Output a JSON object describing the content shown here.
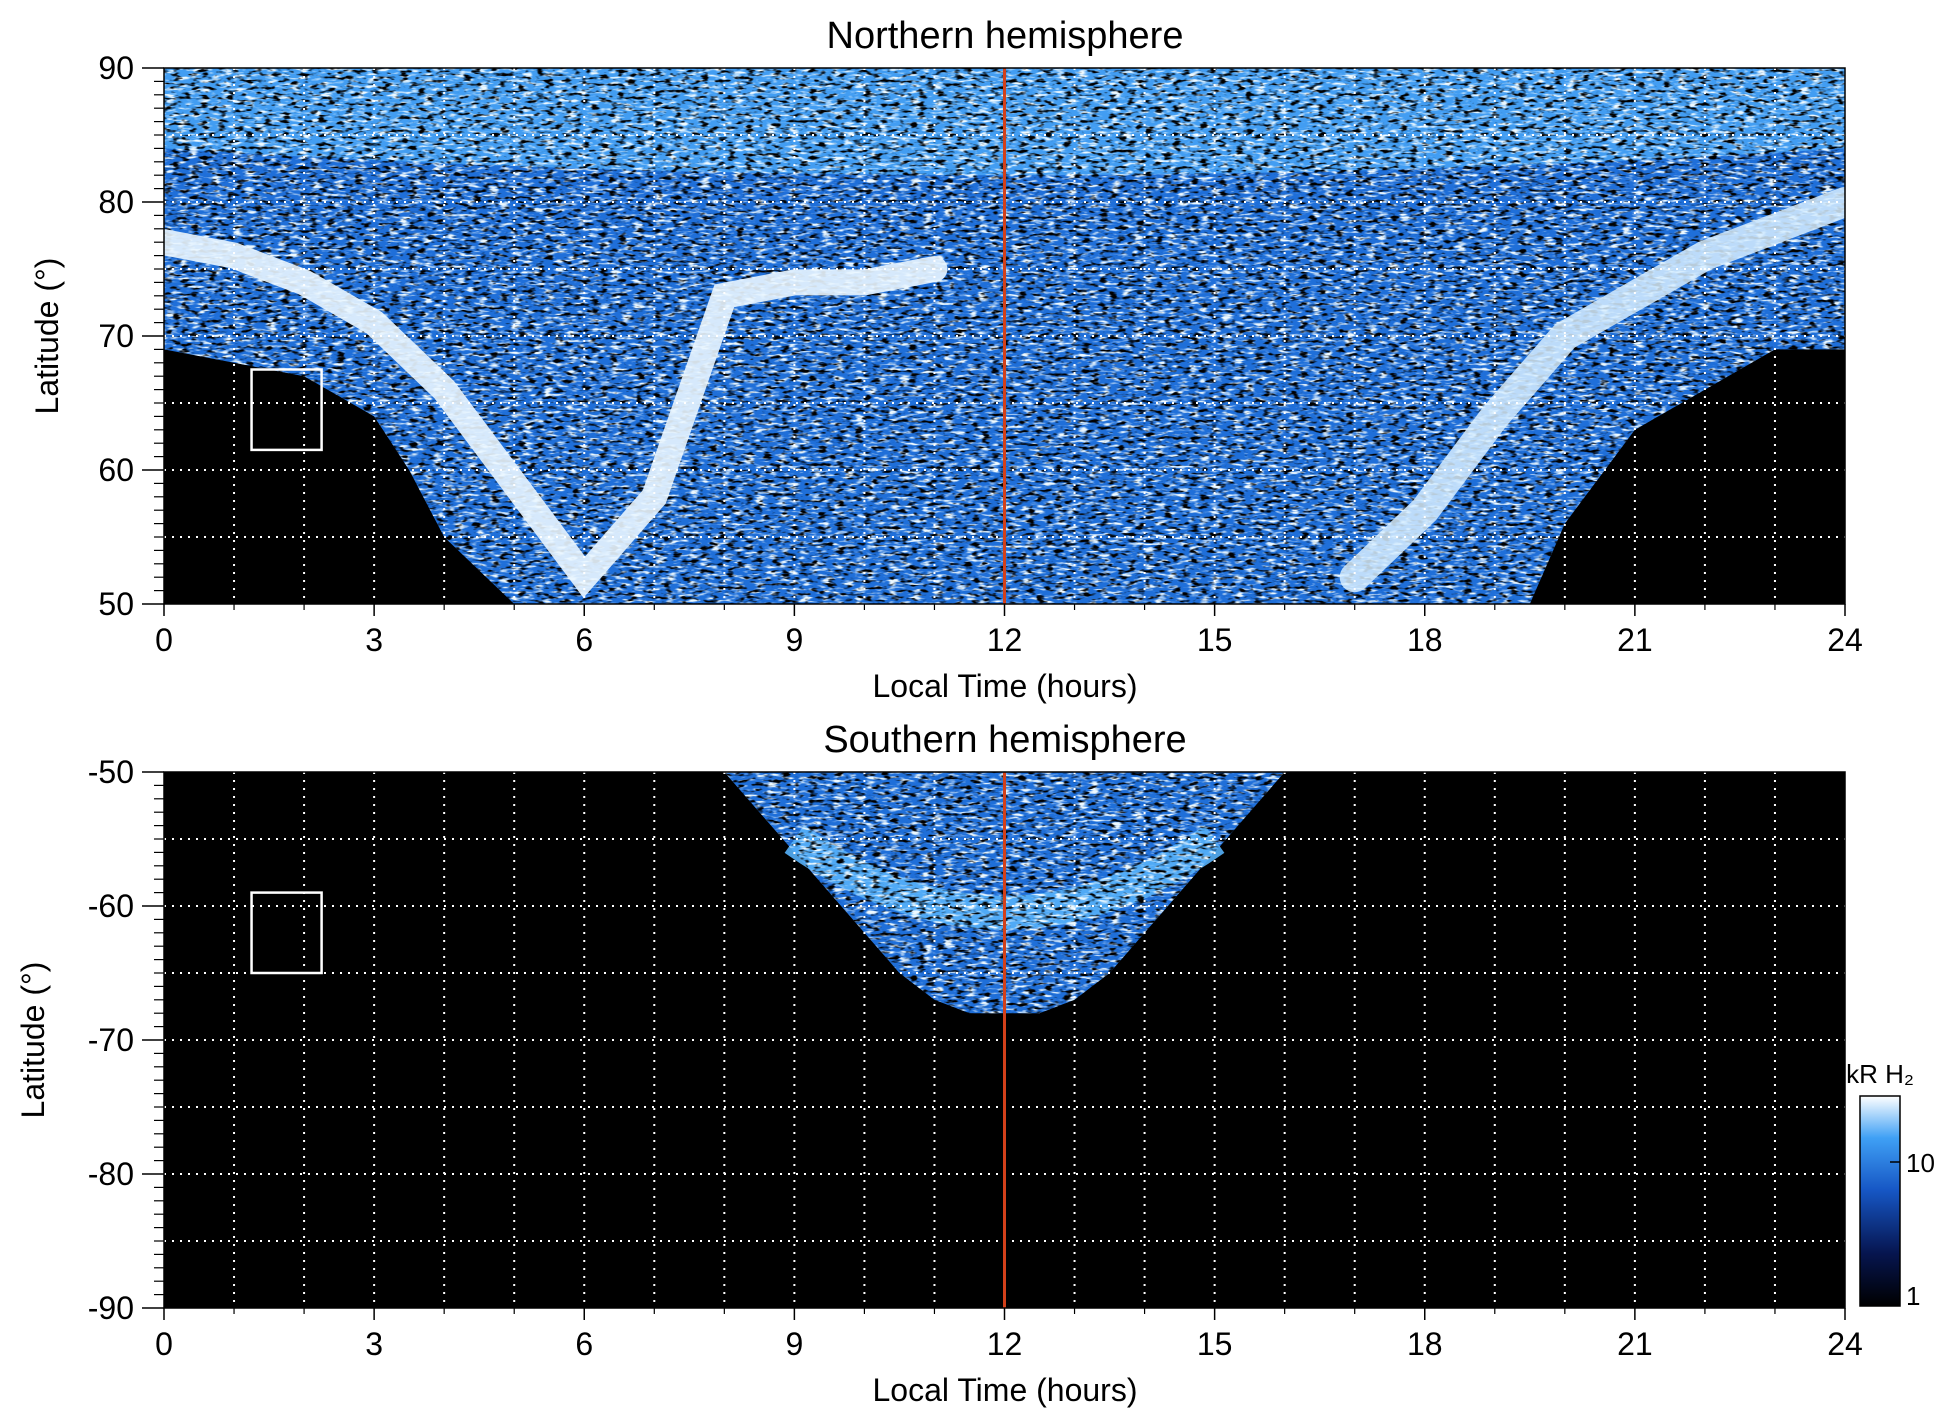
{
  "colors": {
    "background": "#000000",
    "noon_line": "#d2401a",
    "grid": "#ffffff",
    "emission_low": "#0a1a5a",
    "emission_mid": "#2f8cf0",
    "emission_high": "#ffffff"
  },
  "colorbar": {
    "label": "kR H₂",
    "ticks": [
      "10",
      "1"
    ],
    "scale": "log"
  },
  "chart_data": [
    {
      "type": "heatmap",
      "title": "Northern hemisphere",
      "xlabel": "Local Time (hours)",
      "ylabel": "Latitude (°)",
      "xlim": [
        0,
        24
      ],
      "ylim": [
        50,
        90
      ],
      "xticks": [
        "0",
        "3",
        "6",
        "9",
        "12",
        "15",
        "18",
        "21",
        "24"
      ],
      "yticks": [
        "50",
        "60",
        "70",
        "80",
        "90"
      ],
      "grid": true,
      "noon_line_x": 12,
      "coverage_boundary": {
        "local_time": [
          0,
          1,
          2,
          3,
          3.5,
          4,
          5,
          6,
          8,
          10,
          12,
          14,
          16,
          18,
          19,
          19.5,
          20,
          21,
          22,
          23,
          24
        ],
        "min_latitude": [
          69,
          68,
          67,
          64,
          60,
          55,
          50,
          50,
          50,
          50,
          50,
          50,
          50,
          50,
          50,
          50,
          56,
          63,
          66,
          69,
          69
        ]
      },
      "bright_oval": {
        "local_time": [
          0,
          1,
          2,
          3,
          4,
          5,
          6,
          7,
          8,
          9,
          10,
          11
        ],
        "latitude": [
          77,
          76,
          74,
          71,
          66,
          59,
          52,
          58,
          73,
          74,
          74,
          75
        ]
      },
      "bright_oval_dusk": {
        "local_time": [
          17,
          18,
          19,
          20,
          21,
          22,
          23,
          24
        ],
        "latitude": [
          52,
          57,
          64,
          70,
          73,
          76,
          78,
          80
        ]
      },
      "box": {
        "local_time": [
          1.25,
          2.25
        ],
        "latitude": [
          61.5,
          67.5
        ]
      }
    },
    {
      "type": "heatmap",
      "title": "Southern hemisphere",
      "xlabel": "Local Time (hours)",
      "ylabel": "Latitude (°)",
      "xlim": [
        0,
        24
      ],
      "ylim": [
        -90,
        -50
      ],
      "xticks": [
        "0",
        "3",
        "6",
        "9",
        "12",
        "15",
        "18",
        "21",
        "24"
      ],
      "yticks": [
        "-50",
        "-60",
        "-70",
        "-80",
        "-90"
      ],
      "grid": true,
      "noon_line_x": 12,
      "coverage_boundary": {
        "local_time": [
          8,
          8.5,
          9,
          9.5,
          10,
          10.5,
          11,
          11.5,
          12,
          12.5,
          13,
          13.5,
          14,
          14.5,
          15,
          15.5,
          16
        ],
        "max_depth_latitude": [
          -50,
          -53,
          -56,
          -59,
          -62,
          -65,
          -67,
          -68,
          -68,
          -68,
          -67,
          -65,
          -62,
          -59,
          -56,
          -53,
          -50
        ]
      },
      "box": {
        "local_time": [
          1.25,
          2.25
        ],
        "latitude": [
          -65,
          -59
        ]
      }
    }
  ]
}
